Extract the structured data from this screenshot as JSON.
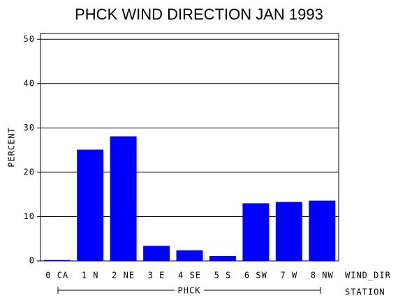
{
  "chart_data": {
    "type": "bar",
    "title": "PHCK WIND DIRECTION JAN 1993",
    "ylabel": "PERCENT",
    "xlabel": "WIND_DIR",
    "group_label": "PHCK",
    "group_axis_label": "STATION",
    "categories": [
      "0 CA",
      "1 N",
      "2 NE",
      "3 E",
      "4 SE",
      "5 S",
      "6 SW",
      "7 W",
      "8 NW"
    ],
    "values": [
      0.2,
      25.1,
      28.1,
      3.4,
      2.4,
      1.1,
      13.0,
      13.3,
      13.6
    ],
    "color": "#0000ff",
    "ylim": [
      0,
      51.3
    ],
    "yticks": [
      0,
      10,
      20,
      30,
      40,
      50
    ],
    "grid": true
  }
}
